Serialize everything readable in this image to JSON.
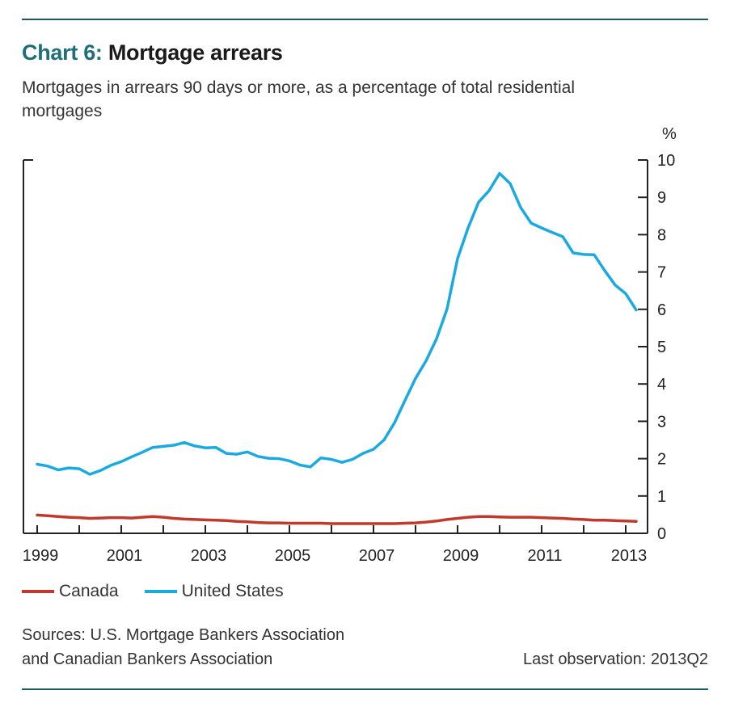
{
  "header": {
    "chart_number": "Chart 6:",
    "title": "Mortgage arrears",
    "subtitle": "Mortgages in arrears 90 days or more, as a percentage of total residential mortgages"
  },
  "colors": {
    "rule": "#1a5b61",
    "chart_number": "#1f6f78",
    "canada": "#c0392b",
    "united_states": "#1aa9e1",
    "axis": "#222222"
  },
  "footer": {
    "sources_line1": "Sources: U.S. Mortgage Bankers Association",
    "sources_line2": "and Canadian Bankers Association",
    "last_observation": "Last observation: 2013Q2"
  },
  "chart_data": {
    "type": "line",
    "ylabel": "%",
    "ylim": [
      0,
      10
    ],
    "yticks": [
      0,
      1,
      2,
      3,
      4,
      5,
      6,
      7,
      8,
      9,
      10
    ],
    "xlim": [
      1999.0,
      2014.0
    ],
    "xticks": [
      "1999",
      "2001",
      "2003",
      "2005",
      "2007",
      "2009",
      "2011",
      "2013"
    ],
    "grid": false,
    "legend_position": "bottom-left",
    "series": [
      {
        "name": "Canada",
        "color": "#c0392b",
        "x": [
          1999.0,
          1999.25,
          1999.5,
          1999.75,
          2000.0,
          2000.25,
          2000.5,
          2000.75,
          2001.0,
          2001.25,
          2001.5,
          2001.75,
          2002.0,
          2002.25,
          2002.5,
          2002.75,
          2003.0,
          2003.25,
          2003.5,
          2003.75,
          2004.0,
          2004.25,
          2004.5,
          2004.75,
          2005.0,
          2005.25,
          2005.5,
          2005.75,
          2006.0,
          2006.25,
          2006.5,
          2006.75,
          2007.0,
          2007.25,
          2007.5,
          2007.75,
          2008.0,
          2008.25,
          2008.5,
          2008.75,
          2009.0,
          2009.25,
          2009.5,
          2009.75,
          2010.0,
          2010.25,
          2010.5,
          2010.75,
          2011.0,
          2011.25,
          2011.5,
          2011.75,
          2012.0,
          2012.25,
          2012.5,
          2012.75,
          2013.0,
          2013.25
        ],
        "values": [
          0.49,
          0.47,
          0.45,
          0.43,
          0.42,
          0.4,
          0.41,
          0.42,
          0.42,
          0.41,
          0.43,
          0.45,
          0.43,
          0.4,
          0.38,
          0.37,
          0.36,
          0.35,
          0.34,
          0.32,
          0.31,
          0.29,
          0.28,
          0.28,
          0.27,
          0.27,
          0.27,
          0.27,
          0.26,
          0.26,
          0.26,
          0.26,
          0.26,
          0.26,
          0.26,
          0.27,
          0.28,
          0.3,
          0.33,
          0.37,
          0.4,
          0.43,
          0.45,
          0.45,
          0.44,
          0.43,
          0.43,
          0.43,
          0.42,
          0.41,
          0.4,
          0.38,
          0.37,
          0.35,
          0.35,
          0.34,
          0.33,
          0.32
        ]
      },
      {
        "name": "United States",
        "color": "#1aa9e1",
        "x": [
          1999.0,
          1999.25,
          1999.5,
          1999.75,
          2000.0,
          2000.25,
          2000.5,
          2000.75,
          2001.0,
          2001.25,
          2001.5,
          2001.75,
          2002.0,
          2002.25,
          2002.5,
          2002.75,
          2003.0,
          2003.25,
          2003.5,
          2003.75,
          2004.0,
          2004.25,
          2004.5,
          2004.75,
          2005.0,
          2005.25,
          2005.5,
          2005.75,
          2006.0,
          2006.25,
          2006.5,
          2006.75,
          2007.0,
          2007.25,
          2007.5,
          2007.75,
          2008.0,
          2008.25,
          2008.5,
          2008.75,
          2009.0,
          2009.25,
          2009.5,
          2009.75,
          2010.0,
          2010.25,
          2010.5,
          2010.75,
          2011.0,
          2011.25,
          2011.5,
          2011.75,
          2012.0,
          2012.25,
          2012.5,
          2012.75,
          2013.0,
          2013.25
        ],
        "values": [
          1.85,
          1.8,
          1.7,
          1.75,
          1.73,
          1.58,
          1.68,
          1.82,
          1.92,
          2.05,
          2.17,
          2.3,
          2.33,
          2.36,
          2.43,
          2.34,
          2.29,
          2.3,
          2.14,
          2.12,
          2.18,
          2.06,
          2.01,
          2.0,
          1.94,
          1.83,
          1.78,
          2.02,
          1.98,
          1.9,
          1.98,
          2.14,
          2.25,
          2.5,
          2.96,
          3.56,
          4.15,
          4.62,
          5.21,
          6.01,
          7.36,
          8.18,
          8.87,
          9.18,
          9.64,
          9.37,
          8.73,
          8.31,
          8.18,
          8.06,
          7.95,
          7.51,
          7.47,
          7.46,
          7.04,
          6.65,
          6.42,
          5.98
        ]
      }
    ]
  }
}
